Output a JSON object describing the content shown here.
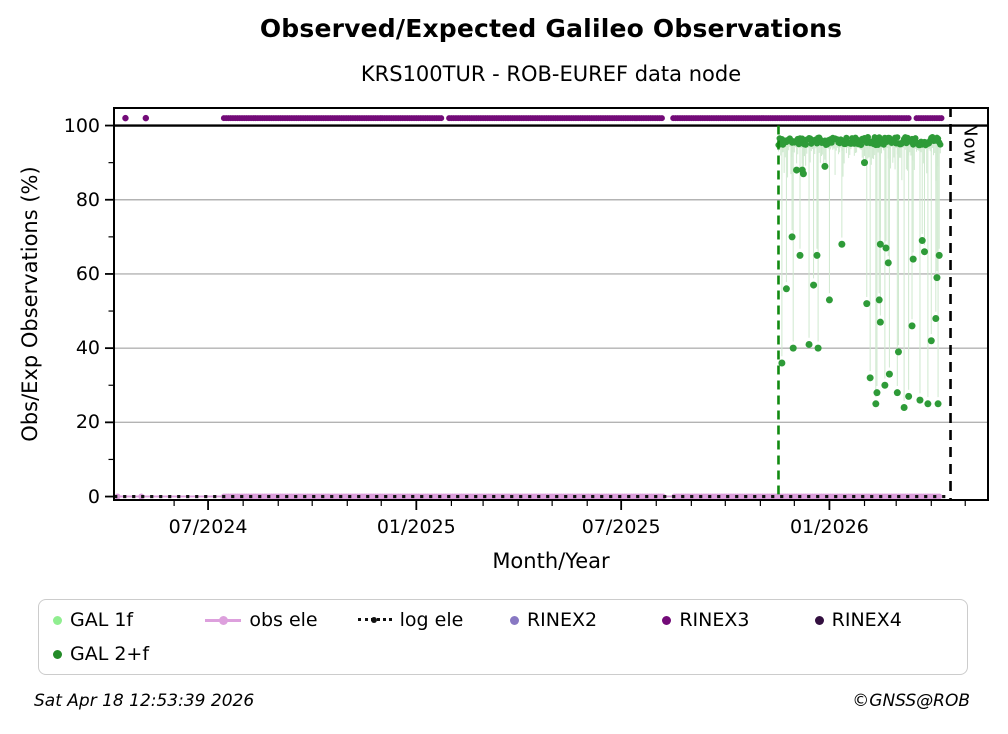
{
  "header": {
    "title": "Observed/Expected Galileo Observations",
    "subtitle": "KRS100TUR - ROB-EUREF data node"
  },
  "footer": {
    "timestamp": "Sat Apr 18 12:53:39 2026",
    "credit": "©GNSS@ROB"
  },
  "legend": {
    "items": [
      {
        "label": "GAL 1f",
        "marker": "dot",
        "color": "#90ee90"
      },
      {
        "label": "obs ele",
        "marker": "line",
        "color": "#dda0dd"
      },
      {
        "label": "log ele",
        "marker": "dotted",
        "color": "#111111"
      },
      {
        "label": "RINEX2",
        "marker": "dot",
        "color": "#8878c3"
      },
      {
        "label": "RINEX3",
        "marker": "dot",
        "color": "#730b78"
      },
      {
        "label": "RINEX4",
        "marker": "dot",
        "color": "#331040"
      },
      {
        "label": "GAL 2+f",
        "marker": "dot",
        "color": "#238b28"
      }
    ]
  },
  "chart_data": {
    "type": "scatter",
    "title": "Observed/Expected Galileo Observations",
    "subtitle": "KRS100TUR - ROB-EUREF data node",
    "xlabel": "Month/Year",
    "ylabel": "Obs/Exp Observations (%)",
    "xlim": [
      "2024-04-08",
      "2026-05-22"
    ],
    "ylim": [
      -1.2,
      105
    ],
    "grid_y": [
      20,
      40,
      60,
      80
    ],
    "hline": {
      "value": 100,
      "color": "#000000"
    },
    "yticks": [
      0,
      20,
      40,
      60,
      80,
      100
    ],
    "yminor": [
      10,
      30,
      50,
      70,
      90
    ],
    "xticks": [
      {
        "date": "2024-07-01",
        "label": "07/2024"
      },
      {
        "date": "2025-01-01",
        "label": "01/2025"
      },
      {
        "date": "2025-07-01",
        "label": "07/2025"
      },
      {
        "date": "2026-01-01",
        "label": "01/2026"
      }
    ],
    "event_line": {
      "date": "2025-11-17",
      "color": "#118a11",
      "style": "dashed"
    },
    "now_line": {
      "date": "2026-04-18",
      "label": "Now",
      "color": "#000000",
      "style": "dashed"
    },
    "series": [
      {
        "name": "GAL 1f",
        "color": "#90ee90",
        "role": "legend-only"
      },
      {
        "name": "GAL 2+f",
        "color": "#2e9b38",
        "role": "band-scatter",
        "stem_color": "#cfe9cf",
        "band": {
          "start": "2025-11-17",
          "end": "2026-04-09",
          "value": 95.8,
          "jitter": 1.1
        },
        "scatter": [
          [
            "2025-11-20",
            36
          ],
          [
            "2025-11-24",
            56
          ],
          [
            "2025-11-29",
            70
          ],
          [
            "2025-11-30",
            40
          ],
          [
            "2025-12-03",
            88
          ],
          [
            "2025-12-06",
            65
          ],
          [
            "2025-12-08",
            88
          ],
          [
            "2025-12-09",
            87
          ],
          [
            "2025-12-14",
            41
          ],
          [
            "2025-12-18",
            57
          ],
          [
            "2025-12-21",
            65
          ],
          [
            "2025-12-22",
            40
          ],
          [
            "2025-12-28",
            89
          ],
          [
            "2026-01-01",
            53
          ],
          [
            "2026-01-12",
            68
          ],
          [
            "2026-02-01",
            90
          ],
          [
            "2026-02-03",
            52
          ],
          [
            "2026-02-06",
            32
          ],
          [
            "2026-02-11",
            25
          ],
          [
            "2026-02-12",
            28
          ],
          [
            "2026-02-14",
            53
          ],
          [
            "2026-02-15",
            68
          ],
          [
            "2026-02-15",
            47
          ],
          [
            "2026-02-19",
            30
          ],
          [
            "2026-02-20",
            67
          ],
          [
            "2026-02-22",
            63
          ],
          [
            "2026-02-23",
            33
          ],
          [
            "2026-03-02",
            28
          ],
          [
            "2026-03-03",
            39
          ],
          [
            "2026-03-08",
            24
          ],
          [
            "2026-03-12",
            27
          ],
          [
            "2026-03-15",
            46
          ],
          [
            "2026-03-16",
            64
          ],
          [
            "2026-03-22",
            26
          ],
          [
            "2026-03-24",
            69
          ],
          [
            "2026-03-26",
            66
          ],
          [
            "2026-03-29",
            25
          ],
          [
            "2026-04-01",
            42
          ],
          [
            "2026-04-05",
            48
          ],
          [
            "2026-04-06",
            59
          ],
          [
            "2026-04-07",
            25
          ],
          [
            "2026-04-08",
            65
          ]
        ]
      },
      {
        "name": "obs ele",
        "color": "#dda0dd",
        "role": "line-markers",
        "value": 0,
        "line": [
          "2024-04-09",
          "2026-04-10"
        ],
        "marker_segments": [
          [
            "2024-07-15",
            "2025-08-07"
          ],
          [
            "2025-08-17",
            "2026-04-09"
          ]
        ],
        "marker_points": [
          "2024-04-12",
          "2024-05-03"
        ]
      },
      {
        "name": "log ele",
        "color": "#111111",
        "role": "dotted-line",
        "value": 0,
        "span": [
          "2024-04-09",
          "2026-04-17"
        ]
      },
      {
        "name": "RINEX2",
        "color": "#8878c3",
        "role": "legend-only"
      },
      {
        "name": "RINEX3",
        "color": "#730b78",
        "role": "dot-band",
        "value": 102,
        "segments": [
          [
            "2024-07-15",
            "2025-01-24"
          ],
          [
            "2025-01-30",
            "2025-08-07"
          ],
          [
            "2025-08-16",
            "2026-03-13"
          ],
          [
            "2026-03-19",
            "2026-04-11"
          ]
        ],
        "points": [
          "2024-04-19",
          "2024-05-07"
        ]
      },
      {
        "name": "RINEX4",
        "color": "#331040",
        "role": "legend-only"
      }
    ]
  }
}
